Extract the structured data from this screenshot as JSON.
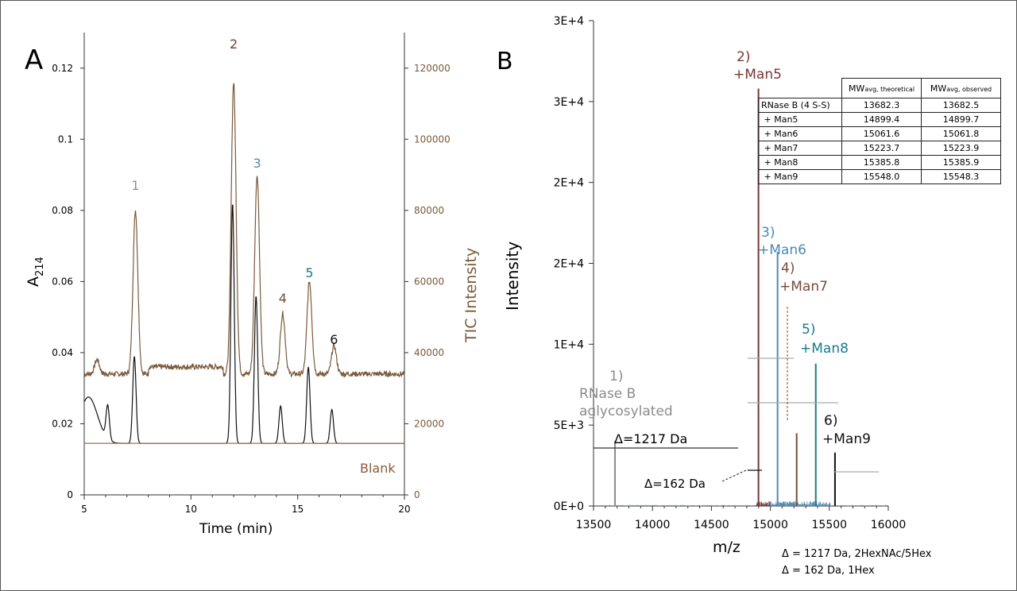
{
  "chart_data": [
    {
      "panel": "A",
      "type": "line",
      "xlabel": "Time (min)",
      "ylabel": "A",
      "ylabel_sub": "214",
      "y2label": "TIC Intensity",
      "xlim": [
        5,
        20
      ],
      "ylim": [
        0,
        0.13
      ],
      "y2lim": [
        0,
        130000
      ],
      "xticks": [
        "5",
        "10",
        "15",
        "20"
      ],
      "yticks": [
        "0",
        "0.02",
        "0.04",
        "0.06",
        "0.08",
        "0.1",
        "0.12"
      ],
      "y2ticks": [
        "0",
        "20000",
        "40000",
        "60000",
        "80000",
        "100000",
        "120000"
      ],
      "series": [
        {
          "name": "",
          "axis": "left",
          "color": "#111111",
          "baseline": 0.0145,
          "peaks": [
            {
              "x": 6.1,
              "y": 0.024
            },
            {
              "x": 7.35,
              "y": 0.039
            },
            {
              "x": 11.95,
              "y": 0.082
            },
            {
              "x": 13.05,
              "y": 0.056
            },
            {
              "x": 14.2,
              "y": 0.025
            },
            {
              "x": 15.5,
              "y": 0.036
            },
            {
              "x": 16.6,
              "y": 0.024
            }
          ]
        },
        {
          "name": "",
          "axis": "right",
          "color": "#7a5a3a",
          "baseline": 34000,
          "peaks": [
            {
              "x": 5.6,
              "y": 38000
            },
            {
              "x": 7.4,
              "y": 80000
            },
            {
              "x": 12.0,
              "y": 116000
            },
            {
              "x": 13.1,
              "y": 90000
            },
            {
              "x": 14.3,
              "y": 51000
            },
            {
              "x": 15.55,
              "y": 60000
            },
            {
              "x": 16.7,
              "y": 42000
            }
          ]
        },
        {
          "name": "Blank",
          "axis": "left",
          "color": "#a0704a",
          "baseline": 0.0145,
          "peaks": []
        }
      ],
      "peak_labels": [
        {
          "text": "1",
          "x": 7.4,
          "color": "#8c8c8c"
        },
        {
          "text": "2",
          "x": 12.0,
          "color": "#6e3b3b"
        },
        {
          "text": "3",
          "x": 13.1,
          "color": "#4a8ab5"
        },
        {
          "text": "4",
          "x": 14.3,
          "color": "#7a4a3a"
        },
        {
          "text": "5",
          "x": 15.55,
          "color": "#1a7a8a"
        },
        {
          "text": "6",
          "x": 16.7,
          "color": "#111111"
        }
      ]
    },
    {
      "panel": "B",
      "type": "bar",
      "xlabel": "m/z",
      "ylabel": "Intensity",
      "xlim": [
        13500,
        16000
      ],
      "ylim": [
        0,
        30000
      ],
      "xticks": [
        "13500",
        "14000",
        "14500",
        "15000",
        "15500",
        "16000"
      ],
      "yticks": [
        "0E+0",
        "5E+3",
        "1E+4",
        "2E+4",
        "2E+4",
        "3E+4",
        "3E+4"
      ],
      "peaks": [
        {
          "label_num": "1)",
          "label": "RNase B",
          "label2": "aglycosylated",
          "x": 13682,
          "y": 4000,
          "color": "#8c8c8c"
        },
        {
          "label_num": "2)",
          "label": "+Man5",
          "x": 14899,
          "y": 25800,
          "color": "#7a3535"
        },
        {
          "label_num": "3)",
          "label": "+Man6",
          "x": 15061,
          "y": 15700,
          "color": "#4a8ab5"
        },
        {
          "label_num": "4)",
          "label": "+Man7",
          "x": 15223,
          "y": 4500,
          "color": "#7a4a3a"
        },
        {
          "label_num": "5)",
          "label": "+Man8",
          "x": 15385,
          "y": 8800,
          "color": "#1a7a8a"
        },
        {
          "label_num": "6)",
          "label": "+Man9",
          "x": 15548,
          "y": 3300,
          "color": "#111111"
        }
      ],
      "annotations": [
        "Δ=1217 Da",
        "Δ=162 Da"
      ],
      "footnotes": [
        "Δ = 1217 Da, 2HexNAc/5Hex",
        "Δ = 162 Da, 1Hex"
      ]
    }
  ],
  "panel_letters": [
    "A",
    "B"
  ],
  "table": {
    "headers": [
      {
        "main": "MW",
        "sub": "avg, theoretical"
      },
      {
        "main": "MW",
        "sub": "avg, observed"
      }
    ],
    "rows": [
      [
        "RNase B (4 S-S)",
        "13682.3",
        "13682.5"
      ],
      [
        " + Man5",
        "14899.4",
        "14899.7"
      ],
      [
        " + Man6",
        "15061.6",
        "15061.8"
      ],
      [
        " + Man7",
        "15223.7",
        "15223.9"
      ],
      [
        " + Man8",
        "15385.8",
        "15385.9"
      ],
      [
        " + Man9",
        "15548.0",
        "15548.3"
      ]
    ]
  }
}
